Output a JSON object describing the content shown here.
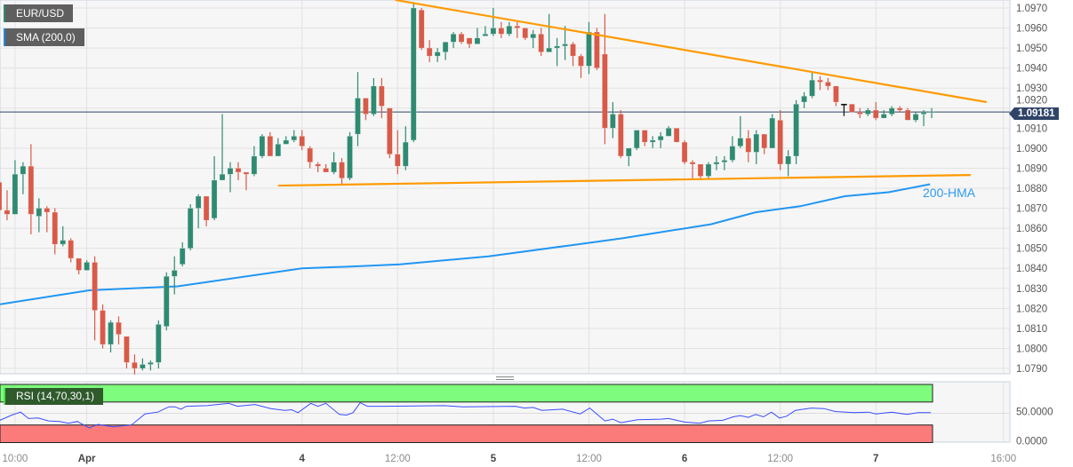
{
  "legend": {
    "symbol": "EUR/USD",
    "indicator": "SMA (200,0)",
    "rsi": "RSI (14,70,30,1)"
  },
  "chart_data": {
    "type": "candlestick",
    "title": "EUR/USD",
    "candle_fields": [
      "open",
      "high",
      "low",
      "close"
    ],
    "candles": [
      [
        1.0883,
        1.0887,
        1.0868,
        1.0869
      ],
      [
        1.0869,
        1.0879,
        1.0864,
        1.0867
      ],
      [
        1.0867,
        1.0894,
        1.0867,
        1.0887
      ],
      [
        1.0887,
        1.0893,
        1.0877,
        1.0891
      ],
      [
        1.0891,
        1.0902,
        1.0857,
        1.0867
      ],
      [
        1.0866,
        1.0875,
        1.0858,
        1.087
      ],
      [
        1.087,
        1.0871,
        1.0858,
        1.0868
      ],
      [
        1.0868,
        1.087,
        1.0847,
        1.0852
      ],
      [
        1.0852,
        1.0861,
        1.0851,
        1.0854
      ],
      [
        1.0854,
        1.0855,
        1.0843,
        1.0845
      ],
      [
        1.0845,
        1.0845,
        1.0837,
        1.0839
      ],
      [
        1.0839,
        1.0844,
        1.0839,
        1.0843
      ],
      [
        1.0843,
        1.0846,
        1.0804,
        1.0819
      ],
      [
        1.0819,
        1.0822,
        1.08,
        1.0802
      ],
      [
        1.0802,
        1.0814,
        1.0798,
        1.0813
      ],
      [
        1.0813,
        1.0816,
        1.0802,
        1.0807
      ],
      [
        1.0806,
        1.0806,
        1.079,
        1.0793
      ],
      [
        1.0793,
        1.0797,
        1.0787,
        1.079
      ],
      [
        1.079,
        1.0795,
        1.0789,
        1.0792
      ],
      [
        1.0792,
        1.0794,
        1.0789,
        1.0793
      ],
      [
        1.0793,
        1.0814,
        1.079,
        1.0812
      ],
      [
        1.0811,
        1.0838,
        1.0809,
        1.0836
      ],
      [
        1.0836,
        1.0846,
        1.0827,
        1.0839
      ],
      [
        1.0842,
        1.0853,
        1.0841,
        1.085
      ],
      [
        1.085,
        1.0872,
        1.0849,
        1.087
      ],
      [
        1.087,
        1.0877,
        1.086,
        1.0876
      ],
      [
        1.0876,
        1.0876,
        1.0861,
        1.0864
      ],
      [
        1.0865,
        1.0896,
        1.0864,
        1.0884
      ],
      [
        1.0884,
        1.0917,
        1.0884,
        1.0887
      ],
      [
        1.0887,
        1.0893,
        1.0878,
        1.089
      ],
      [
        1.089,
        1.0893,
        1.0884,
        1.0888
      ],
      [
        1.0888,
        1.0888,
        1.0879,
        1.0887
      ],
      [
        1.0887,
        1.0901,
        1.0886,
        1.0896
      ],
      [
        1.0896,
        1.0907,
        1.0895,
        1.0906
      ],
      [
        1.0906,
        1.0908,
        1.0896,
        1.0896
      ],
      [
        1.0896,
        1.0905,
        1.0896,
        1.0902
      ],
      [
        1.0902,
        1.0906,
        1.0902,
        1.0904
      ],
      [
        1.0904,
        1.0909,
        1.0903,
        1.0906
      ],
      [
        1.0906,
        1.0909,
        1.0899,
        1.0901
      ],
      [
        1.09,
        1.0901,
        1.089,
        1.0893
      ],
      [
        1.0892,
        1.0893,
        1.0888,
        1.0891
      ],
      [
        1.089,
        1.0892,
        1.0888,
        1.0888
      ],
      [
        1.0888,
        1.0898,
        1.0887,
        1.0893
      ],
      [
        1.0893,
        1.0895,
        1.0882,
        1.0885
      ],
      [
        1.0885,
        1.0908,
        1.0884,
        1.0906
      ],
      [
        1.0907,
        1.0938,
        1.0901,
        1.0925
      ],
      [
        1.0925,
        1.0925,
        1.0914,
        1.0917
      ],
      [
        1.0917,
        1.0935,
        1.0916,
        1.0931
      ],
      [
        1.0931,
        1.0935,
        1.0915,
        1.0921
      ],
      [
        1.092,
        1.092,
        1.0895,
        1.0897
      ],
      [
        1.0897,
        1.0909,
        1.0887,
        1.0891
      ],
      [
        1.0891,
        1.0911,
        1.0889,
        1.0903
      ],
      [
        1.0904,
        1.0973,
        1.0903,
        1.097
      ],
      [
        1.0969,
        1.097,
        1.0949,
        1.095
      ],
      [
        1.095,
        1.0954,
        1.0943,
        1.0946
      ],
      [
        1.0946,
        1.095,
        1.0943,
        1.0948
      ],
      [
        1.0948,
        1.0953,
        1.0944,
        1.0953
      ],
      [
        1.0953,
        1.0958,
        1.095,
        1.0957
      ],
      [
        1.0957,
        1.0958,
        1.0952,
        1.0953
      ],
      [
        1.0955,
        1.0955,
        1.095,
        1.0952
      ],
      [
        1.0952,
        1.096,
        1.0952,
        1.0955
      ],
      [
        1.0956,
        1.0961,
        1.0956,
        1.0957
      ],
      [
        1.0957,
        1.097,
        1.0956,
        1.096
      ],
      [
        1.096,
        1.0963,
        1.0955,
        1.0957
      ],
      [
        1.0957,
        1.0963,
        1.0956,
        1.0961
      ],
      [
        1.0961,
        1.0963,
        1.0955,
        1.096
      ],
      [
        1.096,
        1.096,
        1.0954,
        1.0955
      ],
      [
        1.0955,
        1.0959,
        1.095,
        1.0957
      ],
      [
        1.0957,
        1.096,
        1.0946,
        1.0948
      ],
      [
        1.0948,
        1.0967,
        1.0948,
        1.095
      ],
      [
        1.095,
        1.0955,
        1.0941,
        1.0951
      ],
      [
        1.0951,
        1.0961,
        1.0944,
        1.0952
      ],
      [
        1.0952,
        1.0953,
        1.0941,
        1.0946
      ],
      [
        1.0946,
        1.0947,
        1.0935,
        1.0941
      ],
      [
        1.0941,
        1.0963,
        1.0937,
        1.0958
      ],
      [
        1.0958,
        1.096,
        1.0939,
        1.094
      ],
      [
        1.0947,
        1.0967,
        1.0902,
        1.091
      ],
      [
        1.091,
        1.0923,
        1.0905,
        1.0917
      ],
      [
        1.0917,
        1.0919,
        1.0895,
        1.0896
      ],
      [
        1.0896,
        1.09,
        1.0891,
        1.09
      ],
      [
        1.09,
        1.0909,
        1.0899,
        1.0909
      ],
      [
        1.0909,
        1.0909,
        1.0901,
        1.0903
      ],
      [
        1.0903,
        1.0906,
        1.09,
        1.0904
      ],
      [
        1.0904,
        1.0908,
        1.09,
        1.0906
      ],
      [
        1.0906,
        1.0911,
        1.0906,
        1.091
      ],
      [
        1.091,
        1.091,
        1.0903,
        1.0903
      ],
      [
        1.0903,
        1.0904,
        1.0892,
        1.0893
      ],
      [
        1.0893,
        1.0894,
        1.0884,
        1.0892
      ],
      [
        1.0892,
        1.0892,
        1.0885,
        1.0886
      ],
      [
        1.0886,
        1.0893,
        1.0885,
        1.0892
      ],
      [
        1.0892,
        1.0896,
        1.0889,
        1.0893
      ],
      [
        1.0893,
        1.0896,
        1.0889,
        1.0894
      ],
      [
        1.0894,
        1.0906,
        1.0893,
        1.0901
      ],
      [
        1.0901,
        1.0916,
        1.09,
        1.0905
      ],
      [
        1.0905,
        1.0909,
        1.0893,
        1.0898
      ],
      [
        1.0898,
        1.0909,
        1.0892,
        1.0907
      ],
      [
        1.0907,
        1.0907,
        1.0897,
        1.09
      ],
      [
        1.09,
        1.0917,
        1.09,
        1.0915
      ],
      [
        1.0914,
        1.0919,
        1.0889,
        1.0892
      ],
      [
        1.0892,
        1.0899,
        1.0886,
        1.0896
      ],
      [
        1.0896,
        1.0924,
        1.0892,
        1.0922
      ],
      [
        1.0923,
        1.0928,
        1.092,
        1.0926
      ],
      [
        1.0926,
        1.0938,
        1.0925,
        1.0934
      ],
      [
        1.0934,
        1.0936,
        1.0929,
        1.0933
      ],
      [
        1.0933,
        1.0935,
        1.0929,
        1.0931
      ],
      [
        1.0931,
        1.0931,
        1.0921,
        1.0923
      ],
      [
        1.0922,
        1.0922,
        1.0916,
        1.0922
      ],
      [
        1.0922,
        1.0922,
        1.0918,
        1.0918
      ],
      [
        1.0918,
        1.092,
        1.0915,
        1.0917
      ],
      [
        1.0917,
        1.092,
        1.0916,
        1.0919
      ],
      [
        1.0919,
        1.0923,
        1.0914,
        1.0915
      ],
      [
        1.0915,
        1.0919,
        1.0915,
        1.0917
      ],
      [
        1.0917,
        1.0921,
        1.0916,
        1.092
      ],
      [
        1.092,
        1.0921,
        1.0918,
        1.0919
      ],
      [
        1.0919,
        1.092,
        1.0914,
        1.0914
      ],
      [
        1.0914,
        1.0918,
        1.0913,
        1.0917
      ],
      [
        1.0917,
        1.0919,
        1.0911,
        1.0918
      ],
      [
        1.0918,
        1.092,
        1.0915,
        1.09181
      ]
    ],
    "price_axis": {
      "range": [
        1.079,
        1.097
      ],
      "ticks": [
        "1.0970",
        "1.0960",
        "1.0950",
        "1.0940",
        "1.0930",
        "1.0920",
        "1.0910",
        "1.0900",
        "1.0890",
        "1.0880",
        "1.0870",
        "1.0860",
        "1.0850",
        "1.0840",
        "1.0830",
        "1.0820",
        "1.0810",
        "1.0800",
        "1.0790"
      ]
    },
    "time_axis": {
      "ticks": [
        {
          "label": "10:00",
          "candle": 2,
          "major": false
        },
        {
          "label": "Apr",
          "candle": 11,
          "major": true
        },
        {
          "label": "4",
          "candle": 38,
          "major": true
        },
        {
          "label": "12:00",
          "candle": 50,
          "major": false
        },
        {
          "label": "5",
          "candle": 62,
          "major": true
        },
        {
          "label": "12:00",
          "candle": 74,
          "major": false
        },
        {
          "label": "6",
          "candle": 86,
          "major": true
        },
        {
          "label": "12:00",
          "candle": 98,
          "major": false
        },
        {
          "label": "7",
          "candle": 110,
          "major": true
        },
        {
          "label": "16:00",
          "candle": 126,
          "major": false
        }
      ]
    },
    "current_price": "1.09181",
    "trendlines": [
      {
        "kind": "resistance",
        "from": {
          "candle": 49.7,
          "price": 1.0974
        },
        "to": {
          "candle": 123.9,
          "price": 1.0923
        }
      },
      {
        "kind": "support",
        "from": {
          "candle": 35.0,
          "price": 1.08813
        },
        "to": {
          "candle": 121.9,
          "price": 1.08866
        }
      }
    ],
    "hma": {
      "label": "200-HMA",
      "points": [
        [
          0.1,
          1.0822
        ],
        [
          11.3,
          1.0829
        ],
        [
          22.4,
          1.0831
        ],
        [
          38.0,
          1.084
        ],
        [
          44.7,
          1.0841
        ],
        [
          50.3,
          1.0842
        ],
        [
          61.4,
          1.0846
        ],
        [
          72.6,
          1.0852
        ],
        [
          78.2,
          1.0855
        ],
        [
          89.3,
          1.0862
        ],
        [
          94.9,
          1.0868
        ],
        [
          100.5,
          1.0871
        ],
        [
          106.1,
          1.0876
        ],
        [
          111.6,
          1.0878
        ],
        [
          116.8,
          1.0882
        ]
      ]
    },
    "rsi": {
      "range": [
        0,
        100
      ],
      "overbought": 70,
      "oversold": 30,
      "ticks": [
        "50.0000",
        "0.0000"
      ],
      "points": [
        [
          0.1,
          38
        ],
        [
          1.6,
          47
        ],
        [
          2.7,
          52
        ],
        [
          3.7,
          41
        ],
        [
          4.9,
          42
        ],
        [
          6.2,
          37
        ],
        [
          7.6,
          36
        ],
        [
          8.7,
          33
        ],
        [
          9.8,
          36
        ],
        [
          11.3,
          25
        ],
        [
          12.4,
          31
        ],
        [
          14.3,
          27
        ],
        [
          16.6,
          30
        ],
        [
          18.3,
          49
        ],
        [
          19.9,
          52
        ],
        [
          21.3,
          61
        ],
        [
          22.1,
          61
        ],
        [
          22.8,
          57
        ],
        [
          23.5,
          62
        ],
        [
          26.1,
          63
        ],
        [
          28.8,
          67
        ],
        [
          29.9,
          62
        ],
        [
          32.1,
          65
        ],
        [
          34.1,
          58
        ],
        [
          35.8,
          55
        ],
        [
          36.7,
          56
        ],
        [
          37.5,
          51
        ],
        [
          39.1,
          67
        ],
        [
          40.0,
          62
        ],
        [
          41.0,
          67
        ],
        [
          42.7,
          48
        ],
        [
          43.6,
          47
        ],
        [
          44.4,
          51
        ],
        [
          45.3,
          68
        ],
        [
          46.2,
          62
        ],
        [
          48.4,
          62
        ],
        [
          55.9,
          63
        ],
        [
          58.1,
          61
        ],
        [
          64.8,
          62
        ],
        [
          65.9,
          59
        ],
        [
          67.0,
          60
        ],
        [
          68.1,
          55
        ],
        [
          70.7,
          57
        ],
        [
          72.9,
          49
        ],
        [
          74.1,
          59
        ],
        [
          76.0,
          37
        ],
        [
          77.0,
          40
        ],
        [
          78.0,
          34
        ],
        [
          80.1,
          39
        ],
        [
          83.0,
          40
        ],
        [
          84.0,
          41
        ],
        [
          86.0,
          35
        ],
        [
          87.9,
          33
        ],
        [
          89.0,
          37
        ],
        [
          90.8,
          38
        ],
        [
          92.1,
          44
        ],
        [
          93.0,
          46
        ],
        [
          94.0,
          43
        ],
        [
          94.9,
          48
        ],
        [
          95.9,
          44
        ],
        [
          96.9,
          52
        ],
        [
          97.9,
          42
        ],
        [
          98.8,
          45
        ],
        [
          99.9,
          55
        ],
        [
          101.9,
          59
        ],
        [
          103.5,
          58
        ],
        [
          104.9,
          53
        ],
        [
          107.2,
          51
        ],
        [
          109.1,
          52
        ],
        [
          110.0,
          49
        ],
        [
          112.0,
          52
        ],
        [
          113.9,
          48
        ],
        [
          115.3,
          51
        ],
        [
          116.9,
          51
        ]
      ]
    },
    "grid": true,
    "colors": {
      "up": "#2f8a72",
      "down": "#d85a48",
      "doji": "#111111",
      "trendline": "#ff9a00",
      "hma": "#2196f3",
      "rsi_line": "#3a4dff",
      "overbought_zone": "#7dfc7d",
      "oversold_zone": "#fb7b7b",
      "price_tag": "#2f4468"
    }
  }
}
